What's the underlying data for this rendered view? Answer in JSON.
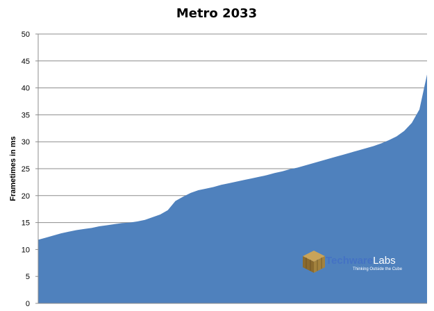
{
  "chart_data": {
    "type": "area",
    "title": "Metro 2033",
    "xlabel": "",
    "ylabel": "Frametimes in ms",
    "ylim": [
      0,
      50
    ],
    "yticks": [
      0,
      5,
      10,
      15,
      20,
      25,
      30,
      35,
      40,
      45,
      50
    ],
    "grid": true,
    "legend": "none",
    "series": [
      {
        "color": "#4f81bd",
        "values": [
          11.8,
          12.2,
          12.6,
          13.0,
          13.3,
          13.6,
          13.8,
          14.0,
          14.3,
          14.5,
          14.7,
          14.9,
          15.0,
          15.2,
          15.5,
          16.0,
          16.5,
          17.3,
          19.0,
          19.8,
          20.5,
          21.0,
          21.3,
          21.6,
          22.0,
          22.3,
          22.6,
          22.9,
          23.2,
          23.5,
          23.8,
          24.2,
          24.5,
          24.9,
          25.2,
          25.6,
          26.0,
          26.4,
          26.8,
          27.2,
          27.6,
          28.0,
          28.4,
          28.8,
          29.2,
          29.7,
          30.3,
          31.0,
          32.0,
          33.5,
          36.0,
          42.5
        ]
      }
    ]
  },
  "watermark": {
    "brand_a": "Techware",
    "brand_b": "Labs",
    "tagline": "Thinking Outside the Cube",
    "icon": "cube-logo-icon"
  }
}
